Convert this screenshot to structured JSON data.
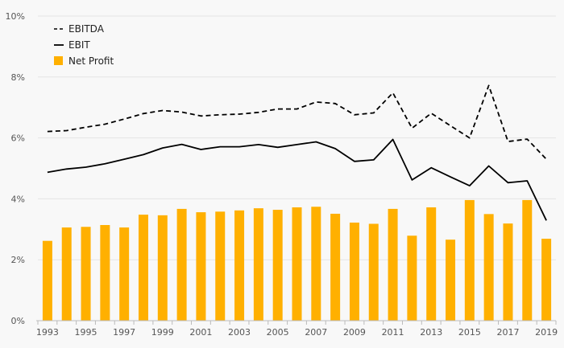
{
  "chart_data": {
    "type": "bar",
    "title": "",
    "xlabel": "",
    "ylabel": "",
    "ylim": [
      0,
      10
    ],
    "y_ticks": [
      "0%",
      "2%",
      "4%",
      "6%",
      "8%",
      "10%"
    ],
    "x_tick_labels": [
      "1993",
      "1995",
      "1997",
      "1999",
      "2001",
      "2003",
      "2005",
      "2007",
      "2009",
      "2011",
      "2013",
      "2015",
      "2017",
      "2019"
    ],
    "categories": [
      "1993",
      "1994",
      "1995",
      "1996",
      "1997",
      "1998",
      "1999",
      "2000",
      "2001",
      "2002",
      "2003",
      "2004",
      "2005",
      "2006",
      "2007",
      "2008",
      "2009",
      "2010",
      "2011",
      "2012",
      "2013",
      "2014",
      "2015",
      "2016",
      "2017",
      "2018",
      "2019"
    ],
    "series": [
      {
        "name": "Net Profit",
        "type": "bar",
        "color": "#ffb000",
        "values": [
          2.62,
          3.06,
          3.08,
          3.14,
          3.06,
          3.48,
          3.46,
          3.67,
          3.56,
          3.58,
          3.62,
          3.69,
          3.64,
          3.72,
          3.74,
          3.51,
          3.22,
          3.18,
          3.67,
          2.79,
          3.72,
          2.66,
          3.96,
          3.5,
          3.19,
          3.96,
          2.69
        ]
      },
      {
        "name": "EBITDA",
        "type": "line",
        "style": "dashed",
        "color": "#000000",
        "values": [
          6.21,
          6.24,
          6.35,
          6.45,
          6.62,
          6.8,
          6.9,
          6.85,
          6.72,
          6.76,
          6.78,
          6.84,
          6.95,
          6.95,
          7.18,
          7.13,
          6.76,
          6.82,
          7.48,
          6.32,
          6.81,
          6.4,
          6.0,
          7.72,
          5.88,
          5.96,
          5.3
        ]
      },
      {
        "name": "EBIT",
        "type": "line",
        "style": "solid",
        "color": "#000000",
        "values": [
          4.87,
          4.98,
          5.04,
          5.15,
          5.3,
          5.45,
          5.67,
          5.79,
          5.62,
          5.71,
          5.71,
          5.78,
          5.69,
          5.78,
          5.87,
          5.65,
          5.23,
          5.28,
          5.95,
          4.62,
          5.02,
          4.72,
          4.43,
          5.08,
          4.53,
          4.59,
          3.29
        ]
      }
    ],
    "legend": {
      "placement": "top-left",
      "order": [
        "EBITDA",
        "EBIT",
        "Net Profit"
      ]
    },
    "grid": true
  }
}
